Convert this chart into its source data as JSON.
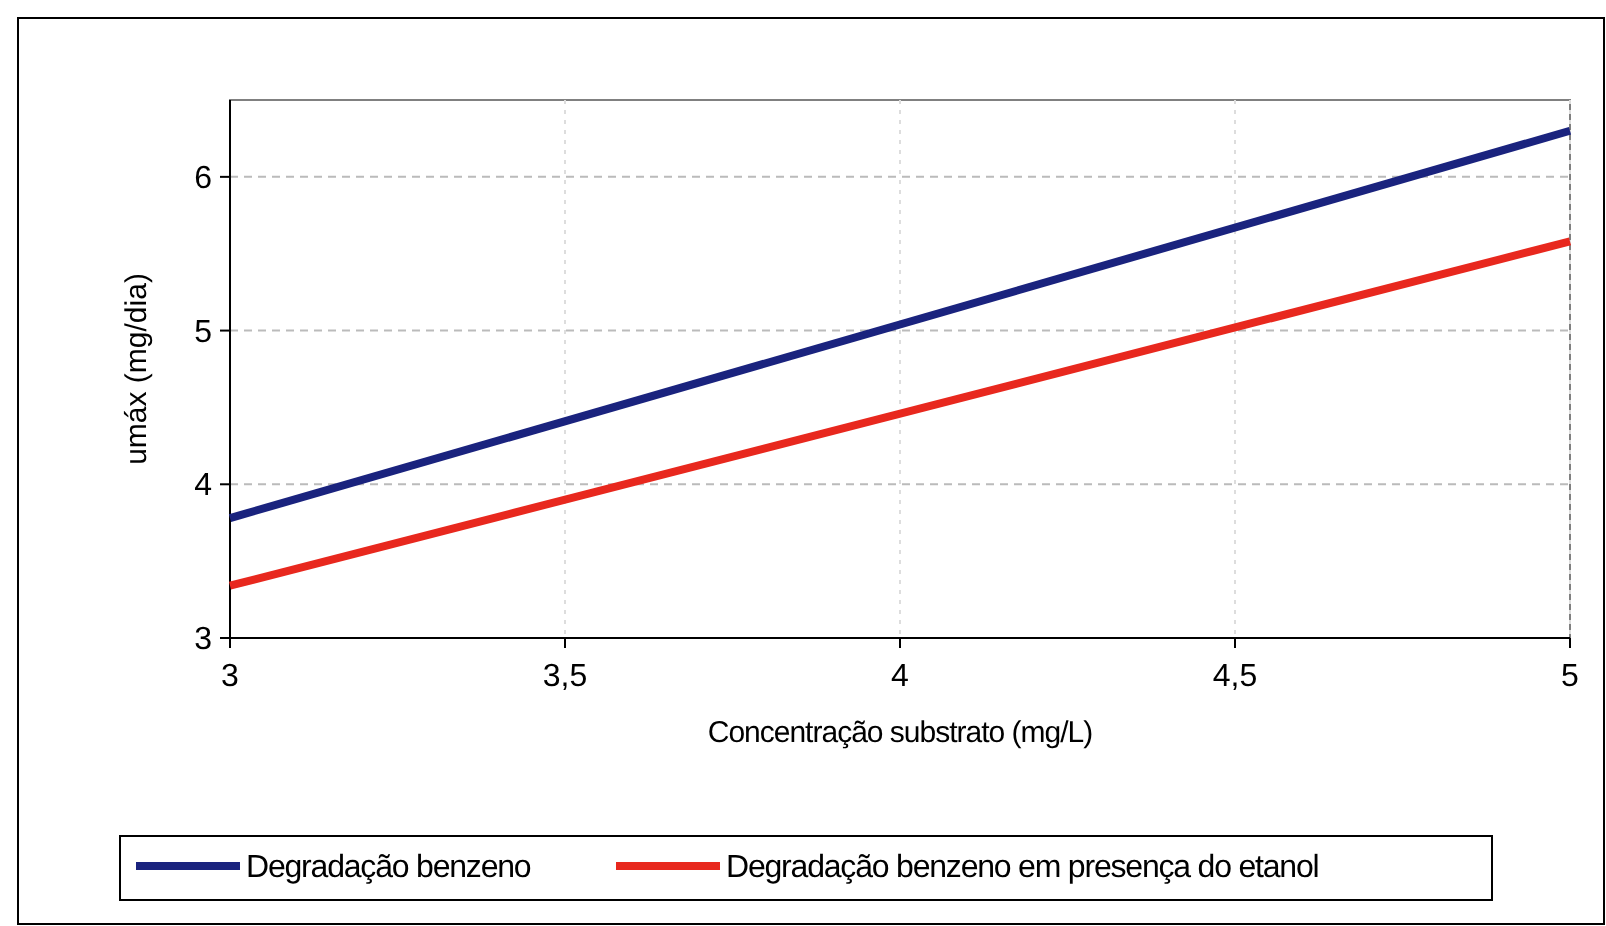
{
  "chart_data": {
    "type": "line",
    "xlabel": "Concentração substrato (mg/L)",
    "ylabel": "umáx (mg/dia)",
    "x": [
      3,
      5
    ],
    "series": [
      {
        "name": "Degradação benzeno",
        "color": "#1a237e",
        "values": [
          3.78,
          6.3
        ]
      },
      {
        "name": "Degradação benzeno em presença do etanol",
        "color": "#e8281e",
        "values": [
          3.34,
          5.58
        ]
      }
    ],
    "xlim": [
      3,
      5
    ],
    "xticks": [
      3,
      {
        "value": 3.5,
        "label": "3,5"
      },
      4,
      {
        "value": 4.5,
        "label": "4,5"
      },
      5
    ],
    "ylim": [
      3,
      6.5
    ],
    "yticks": [
      3,
      4,
      5,
      6
    ],
    "grid": true,
    "legend": "bottom",
    "marker": "none",
    "line_style": "solid"
  }
}
